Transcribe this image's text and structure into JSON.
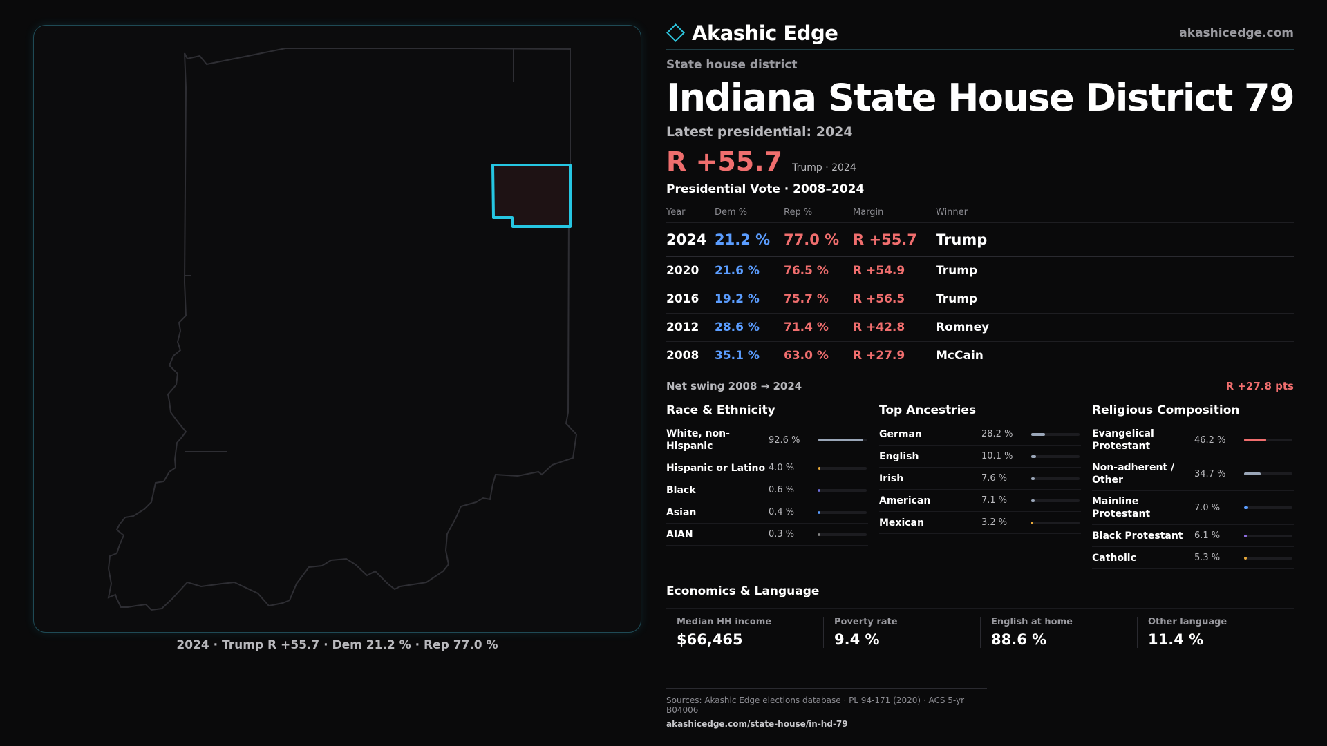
{
  "brand": {
    "name": "Akashic Edge",
    "url": "akashicedge.com",
    "logo_icon": "diamond-outline-icon",
    "accent": "#2ec6de"
  },
  "kicker": "State house district",
  "title": "Indiana State House District 79",
  "latest_label": "Latest presidential: 2024",
  "headline": {
    "margin": "R +55.7",
    "sub": "Trump · 2024"
  },
  "table_title": "Presidential Vote · 2008–2024",
  "table": {
    "headers": [
      "Year",
      "Dem %",
      "Rep %",
      "Margin",
      "Winner"
    ],
    "rows": [
      {
        "year": "2024",
        "dem": "21.2 %",
        "rep": "77.0 %",
        "margin": "R +55.7",
        "winner": "Trump"
      },
      {
        "year": "2020",
        "dem": "21.6 %",
        "rep": "76.5 %",
        "margin": "R +54.9",
        "winner": "Trump"
      },
      {
        "year": "2016",
        "dem": "19.2 %",
        "rep": "75.7 %",
        "margin": "R +56.5",
        "winner": "Trump"
      },
      {
        "year": "2012",
        "dem": "28.6 %",
        "rep": "71.4 %",
        "margin": "R +42.8",
        "winner": "Romney"
      },
      {
        "year": "2008",
        "dem": "35.1 %",
        "rep": "63.0 %",
        "margin": "R +27.9",
        "winner": "McCain"
      }
    ]
  },
  "swing": {
    "label": "Net swing 2008 → 2024",
    "value": "R +27.8 pts"
  },
  "race": {
    "title": "Race & Ethnicity",
    "items": [
      {
        "label": "White, non-Hispanic",
        "value": "92.6 %",
        "pct": 92.6,
        "color": "#9aa6b8"
      },
      {
        "label": "Hispanic or Latino",
        "value": "4.0 %",
        "pct": 4.0,
        "color": "#e8a93a"
      },
      {
        "label": "Black",
        "value": "0.6 %",
        "pct": 0.6,
        "color": "#6f6fe0"
      },
      {
        "label": "Asian",
        "value": "0.4 %",
        "pct": 0.4,
        "color": "#5b9dff"
      },
      {
        "label": "AIAN",
        "value": "0.3 %",
        "pct": 0.3,
        "color": "#888888"
      }
    ]
  },
  "ancestry": {
    "title": "Top Ancestries",
    "items": [
      {
        "label": "German",
        "value": "28.2 %",
        "pct": 28.2,
        "color": "#9aa6b8"
      },
      {
        "label": "English",
        "value": "10.1 %",
        "pct": 10.1,
        "color": "#9aa6b8"
      },
      {
        "label": "Irish",
        "value": "7.6 %",
        "pct": 7.6,
        "color": "#9aa6b8"
      },
      {
        "label": "American",
        "value": "7.1 %",
        "pct": 7.1,
        "color": "#9aa6b8"
      },
      {
        "label": "Mexican",
        "value": "3.2 %",
        "pct": 3.2,
        "color": "#e8a93a"
      }
    ]
  },
  "religion": {
    "title": "Religious Composition",
    "items": [
      {
        "label": "Evangelical Protestant",
        "value": "46.2 %",
        "pct": 46.2,
        "color": "#f06e6e"
      },
      {
        "label": "Non-adherent / Other",
        "value": "34.7 %",
        "pct": 34.7,
        "color": "#9aa6b8"
      },
      {
        "label": "Mainline Protestant",
        "value": "7.0 %",
        "pct": 7.0,
        "color": "#5b9dff"
      },
      {
        "label": "Black Protestant",
        "value": "6.1 %",
        "pct": 6.1,
        "color": "#8f6fe0"
      },
      {
        "label": "Catholic",
        "value": "5.3 %",
        "pct": 5.3,
        "color": "#e8a93a"
      }
    ]
  },
  "economics": {
    "title": "Economics & Language",
    "cells": [
      {
        "label": "Median HH income",
        "value": "$66,465"
      },
      {
        "label": "Poverty rate",
        "value": "9.4 %"
      },
      {
        "label": "English at home",
        "value": "88.6 %"
      },
      {
        "label": "Other language",
        "value": "11.4 %"
      }
    ]
  },
  "map_caption": "2024 · Trump R +55.7 · Dem 21.2 % · Rep 77.0 %",
  "sources": {
    "line1": "Sources: Akashic Edge elections database · PL 94-171 (2020) · ACS 5-yr B04006",
    "line2": "akashicedge.com/state-house/in-hd-79"
  },
  "colors": {
    "dem": "#5b9dff",
    "rep": "#f06e6e",
    "district_outline": "#26c6e2"
  }
}
